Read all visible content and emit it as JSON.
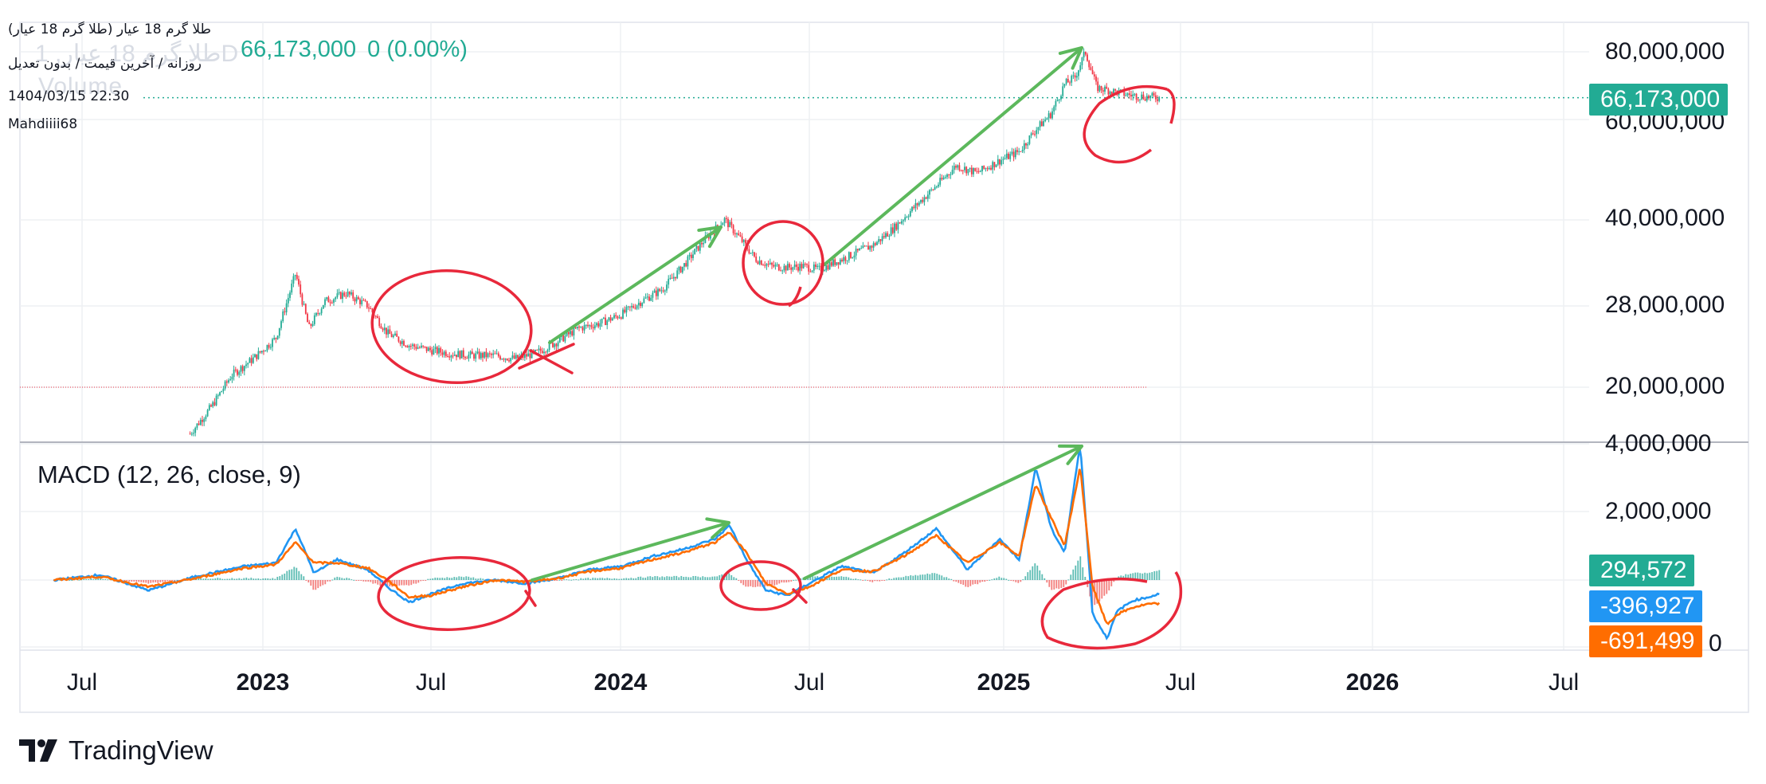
{
  "header": {
    "symbol_name": "طلا گرم 18 عیار (طلا گرم 18 عیار)",
    "ghost_symbol": "طلا گرم 18 عیار, 1D",
    "ghost_volume": "Volume",
    "subtitle": "روزانه / آخرین قیمت / بدون تعدیل",
    "datetime": "1404/03/15 22:30",
    "author": "Mahdiiii68",
    "last_price": "66,173,000",
    "change": "0 (0.00%)"
  },
  "colors": {
    "up": "#22ab94",
    "down": "#f23645",
    "macd_line": "#2196f3",
    "signal_line": "#ff6d00",
    "annotation_circle": "#e8283b",
    "annotation_arrow": "#5cb85c",
    "grid": "#eef0f3"
  },
  "axis": {
    "y_price_labels": [
      "80,000,000",
      "60,000,000",
      "40,000,000",
      "28,000,000",
      "20,000,000"
    ],
    "y_macd_labels": [
      "4,000,000",
      "2,000,000",
      "0"
    ],
    "x_labels": [
      {
        "text": "Jul",
        "year": false
      },
      {
        "text": "2023",
        "year": true
      },
      {
        "text": "Jul",
        "year": false
      },
      {
        "text": "2024",
        "year": true
      },
      {
        "text": "Jul",
        "year": false
      },
      {
        "text": "2025",
        "year": true
      },
      {
        "text": "Jul",
        "year": false
      },
      {
        "text": "2026",
        "year": true
      },
      {
        "text": "Jul",
        "year": false
      }
    ]
  },
  "macd_panel": {
    "title": "MACD (12, 26, close, 9)",
    "histogram_value": "294,572",
    "macd_value": "-396,927",
    "signal_value": "-691,499"
  },
  "price_badge": "66,173,000",
  "footer": {
    "brand": "TradingView"
  },
  "chart_data": [
    {
      "type": "line",
      "name": "price",
      "scale": "log",
      "ylim": [
        17000000,
        84000000
      ],
      "x": [
        "2022-11-10",
        "2022-12-01",
        "2022-12-20",
        "2023-01-10",
        "2023-02-01",
        "2023-02-20",
        "2023-03-05",
        "2023-03-20",
        "2023-04-10",
        "2023-05-01",
        "2023-05-20",
        "2023-06-10",
        "2023-07-01",
        "2023-07-20",
        "2023-08-10",
        "2023-09-01",
        "2023-09-20",
        "2023-10-10",
        "2023-11-01",
        "2023-11-20",
        "2023-12-10",
        "2024-01-01",
        "2024-01-20",
        "2024-02-10",
        "2024-03-01",
        "2024-03-20",
        "2024-04-10",
        "2024-04-25",
        "2024-05-10",
        "2024-05-25",
        "2024-06-10",
        "2024-06-25",
        "2024-07-10",
        "2024-07-25",
        "2024-08-10",
        "2024-09-01",
        "2024-09-20",
        "2024-10-10",
        "2024-11-01",
        "2024-11-20",
        "2024-12-10",
        "2025-01-01",
        "2025-01-20",
        "2025-02-05",
        "2025-02-20",
        "2025-03-05",
        "2025-03-15",
        "2025-03-25",
        "2025-04-05",
        "2025-04-20",
        "2025-05-05",
        "2025-05-20",
        "2025-06-05"
      ],
      "y": [
        16500000,
        18500000,
        21000000,
        22500000,
        24500000,
        32000000,
        25500000,
        28500000,
        29500000,
        28000000,
        25000000,
        23800000,
        23300000,
        23000000,
        22800000,
        22800000,
        22500000,
        23000000,
        24200000,
        25500000,
        26000000,
        27000000,
        28500000,
        30000000,
        33000000,
        36500000,
        40000000,
        37000000,
        34000000,
        33000000,
        32800000,
        33000000,
        32500000,
        33500000,
        34500000,
        36000000,
        38500000,
        42000000,
        46000000,
        50000000,
        48500000,
        51000000,
        53000000,
        58000000,
        62000000,
        70000000,
        72000000,
        80000000,
        69000000,
        68000000,
        67000000,
        66500000,
        66173000
      ]
    },
    {
      "type": "line",
      "name": "MACD (12, 26, close, 9)",
      "ylim": [
        -1100000,
        4000000
      ],
      "x": [
        "2022-07-01",
        "2022-08-15",
        "2022-10-01",
        "2022-11-15",
        "2023-01-01",
        "2023-02-01",
        "2023-02-20",
        "2023-03-10",
        "2023-04-01",
        "2023-05-01",
        "2023-05-20",
        "2023-06-10",
        "2023-07-01",
        "2023-08-01",
        "2023-09-01",
        "2023-10-01",
        "2023-11-01",
        "2023-12-01",
        "2024-01-01",
        "2024-02-01",
        "2024-03-01",
        "2024-04-01",
        "2024-04-15",
        "2024-05-01",
        "2024-05-20",
        "2024-06-10",
        "2024-07-01",
        "2024-08-01",
        "2024-09-01",
        "2024-10-01",
        "2024-11-01",
        "2024-12-01",
        "2025-01-01",
        "2025-01-20",
        "2025-02-05",
        "2025-02-20",
        "2025-03-05",
        "2025-03-20",
        "2025-04-01",
        "2025-04-15",
        "2025-04-25",
        "2025-05-10",
        "2025-05-25",
        "2025-06-05"
      ],
      "series": [
        {
          "name": "MACD",
          "values": [
            0,
            150000,
            -300000,
            100000,
            400000,
            500000,
            1500000,
            200000,
            600000,
            300000,
            -200000,
            -650000,
            -400000,
            -100000,
            0,
            -100000,
            50000,
            300000,
            400000,
            700000,
            900000,
            1200000,
            1600000,
            600000,
            -300000,
            -450000,
            -100000,
            400000,
            200000,
            800000,
            1500000,
            300000,
            1200000,
            600000,
            3300000,
            1500000,
            800000,
            4000000,
            -1000000,
            -1700000,
            -900000,
            -600000,
            -500000,
            -396927
          ]
        },
        {
          "name": "Signal",
          "values": [
            0,
            100000,
            -200000,
            50000,
            350000,
            450000,
            1100000,
            500000,
            500000,
            350000,
            0,
            -500000,
            -450000,
            -200000,
            0,
            -50000,
            50000,
            250000,
            350000,
            600000,
            800000,
            1100000,
            1400000,
            800000,
            -100000,
            -400000,
            -200000,
            300000,
            250000,
            700000,
            1300000,
            500000,
            1100000,
            700000,
            2800000,
            1800000,
            1000000,
            3300000,
            -200000,
            -1300000,
            -1000000,
            -800000,
            -700000,
            -691499
          ]
        }
      ],
      "histogram": {
        "name": "Histogram",
        "last": 294572
      }
    }
  ],
  "annotations": {
    "note": ""
  }
}
